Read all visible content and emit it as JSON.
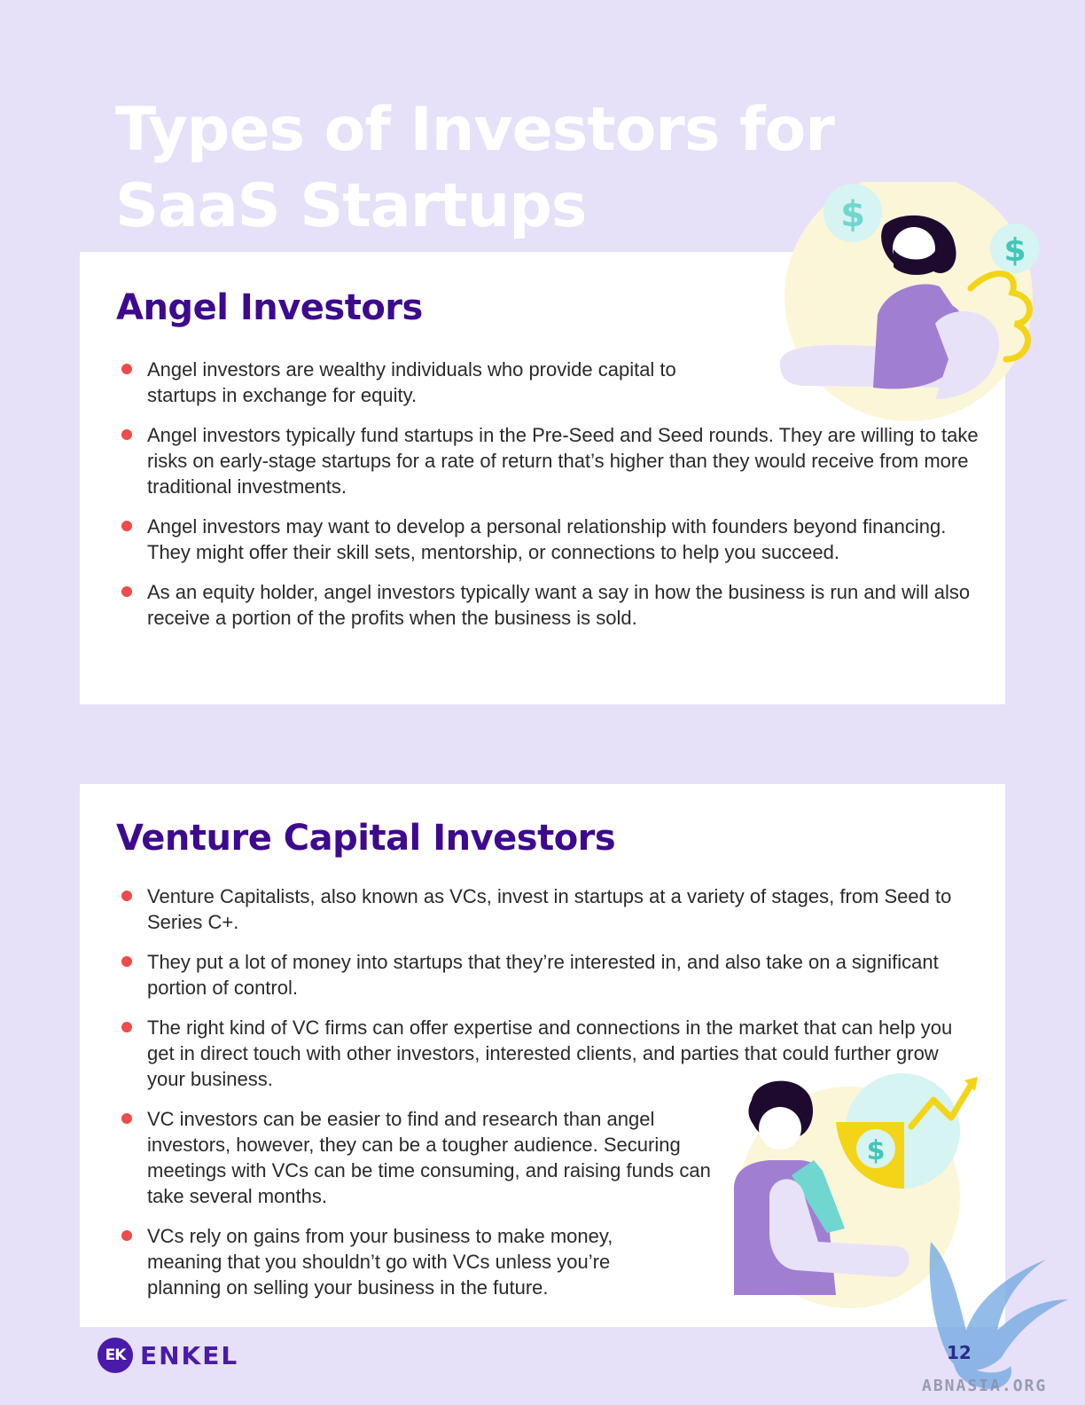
{
  "page": {
    "title_line1": "Types of Investors for",
    "title_line2": "SaaS Startups",
    "page_number": "12"
  },
  "angel": {
    "heading": "Angel Investors",
    "bullets": [
      "Angel investors are wealthy individuals who provide capital to startups in exchange for equity.",
      "Angel investors typically fund startups in the Pre-Seed and Seed rounds. They are willing to take risks on early-stage startups for a rate of return that’s higher than they would receive from more traditional investments.",
      "Angel investors may want to develop a personal relationship with founders beyond financing. They might offer their skill sets, mentorship, or connections to help you succeed.",
      "As an equity holder, angel investors typically want a say in how the business is run and will also receive a portion of the profits when the business is sold."
    ]
  },
  "vc": {
    "heading": "Venture Capital Investors",
    "bullets": [
      "Venture Capitalists, also known as VCs, invest in startups at a variety of stages, from Seed to Series C+.",
      "They put a lot of money into startups that they’re interested in, and also take on a significant portion of control.",
      "The right kind of VC firms can offer expertise and connections in the market that can help you get in direct touch with other investors, interested clients, and parties that could further grow your business.",
      "VC investors can be easier to find and research than angel investors, however, they can be a tougher audience. Securing meetings with VCs can be time consuming, and raising funds can take several months.",
      "VCs rely on gains from your business to make money, meaning that you shouldn’t go with VCs unless you’re planning on selling your business in the future."
    ]
  },
  "footer": {
    "logo_mark": "EK",
    "logo_text": "ENKEL",
    "watermark": "ABNASIA.ORG"
  },
  "colors": {
    "background": "#e6e0f8",
    "heading": "#3d0a8f",
    "bullet_dot": "#ee4b4b",
    "brand": "#4a1aa8"
  },
  "icons": [
    "dollar-coin-icon",
    "dollar-coin-icon",
    "angel-investor-illustration",
    "vc-investor-illustration",
    "growth-arrow-icon",
    "dollar-shield-icon",
    "griffin-watermark-icon"
  ]
}
